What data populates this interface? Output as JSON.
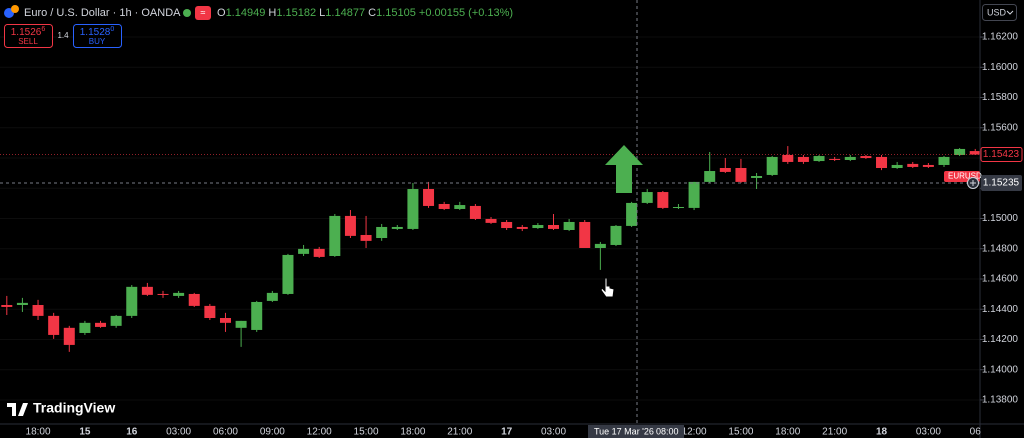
{
  "header": {
    "symbol": "Euro / U.S. Dollar · 1h · OANDA",
    "ohlc": [
      {
        "label": "O",
        "value": "1.14949"
      },
      {
        "label": "H",
        "value": "1.15182"
      },
      {
        "label": "L",
        "value": "1.14877"
      },
      {
        "label": "C",
        "value": "1.15105"
      }
    ],
    "change": "+0.00155 (+0.13%)"
  },
  "trade": {
    "sell_price": "1.1526",
    "sell_pip": "6",
    "sell_label": "SELL",
    "spread": "1.4",
    "buy_price": "1.1528",
    "buy_pip": "0",
    "buy_label": "BUY"
  },
  "currency": "USD",
  "brand": "TradingView",
  "chart_data": {
    "type": "candlestick",
    "categories": [
      null,
      null,
      "18:00",
      null,
      null,
      "15",
      null,
      null,
      "16",
      null,
      null,
      "03:00",
      null,
      null,
      "06:00",
      null,
      null,
      "09:00",
      null,
      null,
      "12:00",
      null,
      null,
      "15:00",
      null,
      null,
      "18:00",
      null,
      null,
      "21:00",
      null,
      null,
      "17",
      null,
      null,
      "03:00",
      null,
      null,
      null,
      null,
      null,
      null,
      null,
      null,
      "12:00",
      null,
      null,
      "15:00",
      null,
      null,
      "18:00",
      null,
      null,
      "21:00",
      null,
      null,
      "18",
      null,
      null,
      "03:00",
      null,
      null,
      "06"
    ],
    "open": [
      1.14428,
      1.14428,
      1.14428,
      1.14356,
      1.14277,
      1.14243,
      1.1431,
      1.1429,
      1.14356,
      1.14548,
      1.14501,
      1.14488,
      1.14501,
      1.14422,
      1.14342,
      1.14277,
      1.14263,
      1.14455,
      1.14501,
      1.14766,
      1.14799,
      1.14752,
      1.15017,
      1.14891,
      1.14871,
      1.14931,
      1.14931,
      1.15195,
      1.15096,
      1.15063,
      1.15083,
      1.14997,
      1.14977,
      1.14944,
      1.14937,
      1.14957,
      1.14924,
      1.14977,
      1.14805,
      1.14825,
      1.14951,
      1.15103,
      1.15175,
      1.1507,
      1.1507,
      1.15242,
      1.15334,
      1.15334,
      1.15268,
      1.15288,
      1.1542,
      1.15407,
      1.1538,
      1.15394,
      1.15387,
      1.15413,
      1.15407,
      1.15334,
      1.15361,
      1.15354,
      1.15354,
      1.1542,
      1.15446
    ],
    "high": [
      1.14488,
      1.14475,
      1.14462,
      1.14376,
      1.1429,
      1.14323,
      1.14323,
      1.14362,
      1.1456,
      1.14574,
      1.14521,
      1.14521,
      1.14508,
      1.14435,
      1.14376,
      1.14323,
      1.14455,
      1.14521,
      1.14766,
      1.14825,
      1.14812,
      1.1503,
      1.15056,
      1.15017,
      1.14964,
      1.14957,
      1.15235,
      1.15242,
      1.1511,
      1.1511,
      1.15096,
      1.1501,
      1.1499,
      1.14957,
      1.1497,
      1.1503,
      1.14997,
      1.1499,
      1.14845,
      1.14957,
      1.1511,
      1.15195,
      1.15182,
      1.15096,
      1.15242,
      1.1544,
      1.154,
      1.15394,
      1.15301,
      1.15413,
      1.15479,
      1.1542,
      1.1542,
      1.15407,
      1.1542,
      1.1542,
      1.1542,
      1.15374,
      1.15374,
      1.15367,
      1.15413,
      1.15466,
      1.1546
    ],
    "low": [
      1.14362,
      1.14382,
      1.14329,
      1.14204,
      1.14118,
      1.1423,
      1.14277,
      1.14277,
      1.14342,
      1.14488,
      1.14475,
      1.14475,
      1.14415,
      1.14329,
      1.1425,
      1.14151,
      1.1425,
      1.14448,
      1.14495,
      1.14752,
      1.14739,
      1.14746,
      1.14871,
      1.14805,
      1.14852,
      1.14924,
      1.14924,
      1.1507,
      1.15056,
      1.15056,
      1.1499,
      1.14964,
      1.14924,
      1.14917,
      1.14931,
      1.14924,
      1.14917,
      1.14805,
      1.1466,
      1.14818,
      1.14944,
      1.15096,
      1.15063,
      1.15063,
      1.15056,
      1.15235,
      1.15301,
      1.15235,
      1.15195,
      1.15281,
      1.15361,
      1.15361,
      1.15374,
      1.1538,
      1.1538,
      1.15394,
      1.1532,
      1.15328,
      1.15334,
      1.15334,
      1.15341,
      1.15413,
      1.1542
    ],
    "close": [
      1.14415,
      1.14442,
      1.14356,
      1.1423,
      1.14164,
      1.1431,
      1.14283,
      1.14356,
      1.14548,
      1.14495,
      1.14495,
      1.14508,
      1.14422,
      1.14342,
      1.1431,
      1.14323,
      1.14448,
      1.14508,
      1.14759,
      1.14799,
      1.14746,
      1.15017,
      1.14885,
      1.14852,
      1.14944,
      1.14944,
      1.15195,
      1.15083,
      1.15063,
      1.15089,
      1.14997,
      1.14971,
      1.14937,
      1.14931,
      1.14957,
      1.14931,
      1.14977,
      1.14805,
      1.14832,
      1.14951,
      1.15103,
      1.15175,
      1.1507,
      1.15076,
      1.15242,
      1.15314,
      1.15308,
      1.15242,
      1.15281,
      1.15407,
      1.15374,
      1.15374,
      1.15413,
      1.15387,
      1.15407,
      1.154,
      1.15334,
      1.15354,
      1.15341,
      1.15341,
      1.15407,
      1.1546,
      1.15423
    ],
    "up_color": "#4caf50",
    "down_color": "#f23645",
    "ylim": [
      1.13641,
      1.16445
    ],
    "yticks": [
      {
        "value": 1.138,
        "label": "1.13800"
      },
      {
        "value": 1.14,
        "label": "1.14000"
      },
      {
        "value": 1.142,
        "label": "1.14200"
      },
      {
        "value": 1.144,
        "label": "1.14400"
      },
      {
        "value": 1.146,
        "label": "1.14600"
      },
      {
        "value": 1.148,
        "label": "1.14800"
      },
      {
        "value": 1.15,
        "label": "1.15000"
      },
      {
        "value": 1.152,
        "label": "1.15200"
      },
      {
        "value": 1.154,
        "label": "1.15400"
      },
      {
        "value": 1.156,
        "label": "1.15600"
      },
      {
        "value": 1.158,
        "label": "1.15800"
      },
      {
        "value": 1.16,
        "label": "1.16000"
      },
      {
        "value": 1.162,
        "label": "1.16200"
      }
    ],
    "last_price": 1.15423,
    "symbol_label": "EURUSD",
    "crosshair": {
      "price": 1.15235,
      "date": "Tue 17 Mar '26",
      "time": "08:00"
    }
  }
}
